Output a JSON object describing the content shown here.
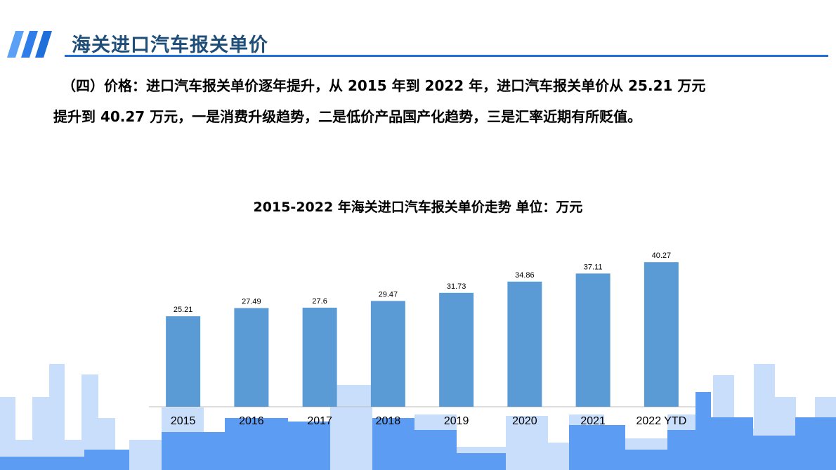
{
  "header": {
    "title": "海关进口汽车报关单价"
  },
  "body": {
    "line1": "（四）价格：进口汽车报关单价逐年提升，从 2015 年到 2022 年，进口汽车报关单价从 25.21 万元",
    "line2": "提升到 40.27 万元，一是消费升级趋势，二是低价产品国产化趋势，三是汇率近期有所贬值。"
  },
  "colors": {
    "accent": "#1e6fd9",
    "title_text": "#1f4e79",
    "bar": "#5b9bd5",
    "skyline_light": "#c9defb",
    "skyline_dark": "#5c9cf2"
  },
  "chart_data": {
    "type": "bar",
    "title": "2015-2022 年海关进口汽车报关单价走势  单位：万元",
    "categories": [
      "2015",
      "2016",
      "2017",
      "2018",
      "2019",
      "2020",
      "2021",
      "2022 YTD"
    ],
    "values": [
      25.21,
      27.49,
      27.6,
      29.47,
      31.73,
      34.86,
      37.11,
      40.27
    ],
    "value_labels": [
      "25.21",
      "27.49",
      "27.6",
      "29.47",
      "31.73",
      "34.86",
      "37.11",
      "40.27"
    ],
    "grid": false,
    "legend": "none"
  }
}
